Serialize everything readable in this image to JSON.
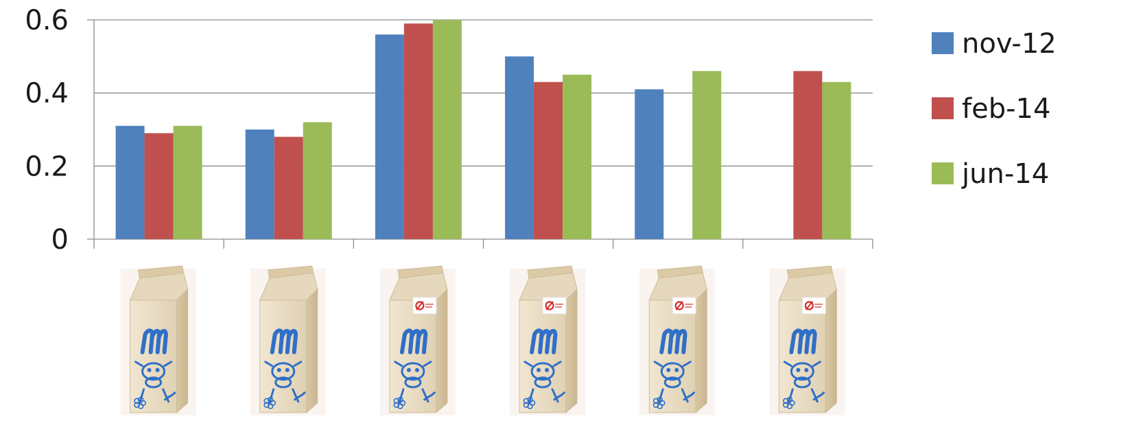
{
  "chart_data": {
    "type": "bar",
    "title": "",
    "xlabel": "",
    "ylabel": "",
    "ylim": [
      0,
      0.6
    ],
    "yticks": [
      "0",
      "0.2",
      "0.4",
      "0.6"
    ],
    "grid": true,
    "legend_position": "right",
    "categories": [
      {
        "brand_label_shown": false
      },
      {
        "brand_label_shown": false
      },
      {
        "brand_label_shown": true
      },
      {
        "brand_label_shown": true
      },
      {
        "brand_label_shown": true
      },
      {
        "brand_label_shown": true
      }
    ],
    "category_icon": "milk-carton-icon",
    "series": [
      {
        "name": "nov-12",
        "color": "#4f81bd",
        "values": [
          0.31,
          0.3,
          0.56,
          0.5,
          0.41,
          null
        ]
      },
      {
        "name": "feb-14",
        "color": "#c0504d",
        "values": [
          0.29,
          0.28,
          0.59,
          0.43,
          null,
          0.46
        ]
      },
      {
        "name": "jun-14",
        "color": "#9bbb59",
        "values": [
          0.31,
          0.32,
          0.6,
          0.45,
          0.46,
          0.43
        ]
      }
    ]
  }
}
